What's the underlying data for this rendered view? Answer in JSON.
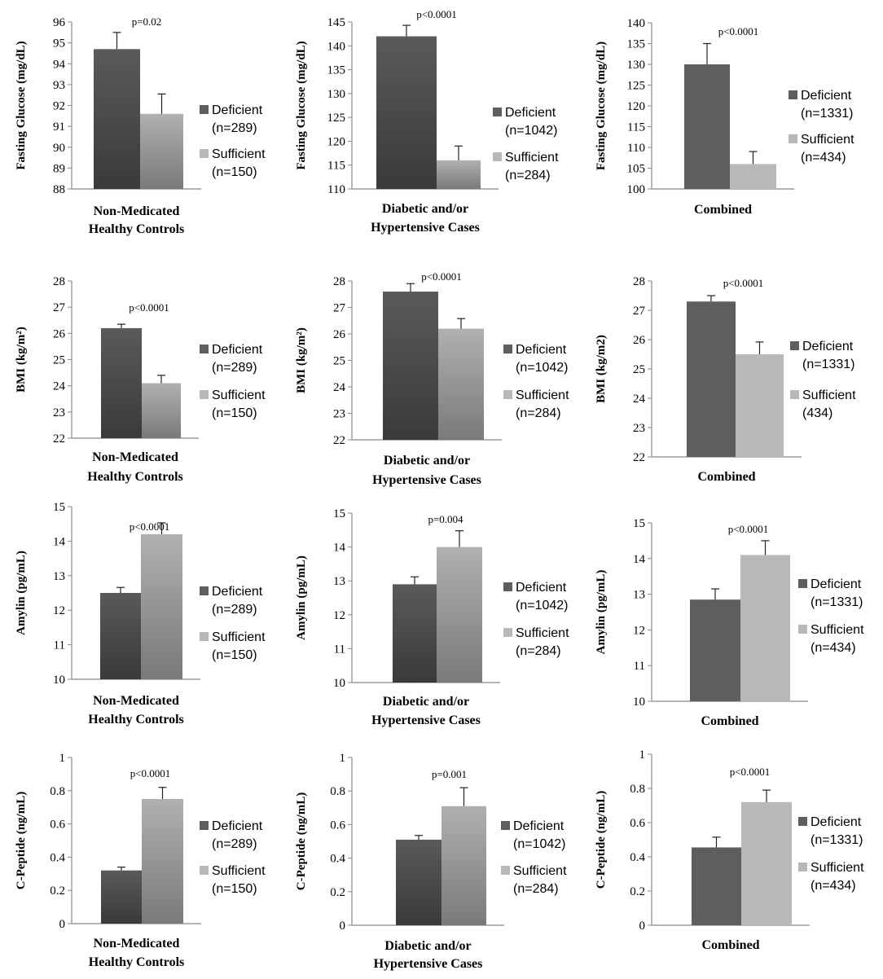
{
  "colors": {
    "deficient_top": "#5a5a5a",
    "deficient_bottom": "#3a3a3a",
    "sufficient_top": "#b0b0b0",
    "sufficient_bottom": "#7a7a7a",
    "deficient_flat": "#5e5e5e",
    "sufficient_flat": "#b8b8b8"
  },
  "chart_data": [
    {
      "type": "bar",
      "ylabel": "Fasting Glucose (mg/dL)",
      "xlabel": [
        "Non-Medicated",
        "Healthy Controls"
      ],
      "ylim": [
        88,
        96
      ],
      "yticks": [
        88,
        89,
        90,
        91,
        92,
        93,
        94,
        95,
        96
      ],
      "p_value": "p=0.02",
      "series": [
        {
          "name": "Deficient",
          "n_label": "(n=289)",
          "value": 94.7,
          "error": 0.8
        },
        {
          "name": "Sufficient",
          "n_label": "(n=150)",
          "value": 91.6,
          "error": 0.95
        }
      ],
      "style": "gradient"
    },
    {
      "type": "bar",
      "ylabel": "Fasting Glucose (mg/dL)",
      "xlabel": [
        "Diabetic and/or",
        "Hypertensive Cases"
      ],
      "ylim": [
        110,
        145
      ],
      "yticks": [
        110,
        115,
        120,
        125,
        130,
        135,
        140,
        145
      ],
      "p_value": "p<0.0001",
      "series": [
        {
          "name": "Deficient",
          "n_label": "(n=1042)",
          "value": 142,
          "error": 2.3
        },
        {
          "name": "Sufficient",
          "n_label": "(n=284)",
          "value": 116,
          "error": 3
        }
      ],
      "style": "gradient"
    },
    {
      "type": "bar",
      "ylabel": "Fasting Glucose (mg/dL)",
      "xlabel": [
        "Combined"
      ],
      "ylim": [
        100,
        140
      ],
      "yticks": [
        100,
        105,
        110,
        115,
        120,
        125,
        130,
        135,
        140
      ],
      "p_value": "p<0.0001",
      "series": [
        {
          "name": "Deficient",
          "n_label": "(n=1331)",
          "value": 130,
          "error": 5
        },
        {
          "name": "Sufficient",
          "n_label": "(n=434)",
          "value": 106,
          "error": 3
        }
      ],
      "style": "flat"
    },
    {
      "type": "bar",
      "ylabel": "BMI (kg/m²)",
      "xlabel": [
        "Non-Medicated",
        "Healthy Controls"
      ],
      "ylim": [
        22,
        28
      ],
      "yticks": [
        22,
        23,
        24,
        25,
        26,
        27,
        28
      ],
      "p_value": "p<0.0001",
      "series": [
        {
          "name": "Deficient",
          "n_label": "(n=289)",
          "value": 26.2,
          "error": 0.15
        },
        {
          "name": "Sufficient",
          "n_label": "(n=150)",
          "value": 24.1,
          "error": 0.3
        }
      ],
      "style": "gradient"
    },
    {
      "type": "bar",
      "ylabel": "BMI (kg/m²)",
      "xlabel": [
        "Diabetic and/or",
        "Hypertensive Cases"
      ],
      "ylim": [
        22,
        28
      ],
      "yticks": [
        22,
        23,
        24,
        25,
        26,
        27,
        28
      ],
      "p_value": "p<0.0001",
      "series": [
        {
          "name": "Deficient",
          "n_label": "(n=1042)",
          "value": 27.6,
          "error": 0.3
        },
        {
          "name": "Sufficient",
          "n_label": "(n=284)",
          "value": 26.2,
          "error": 0.38
        }
      ],
      "style": "gradient"
    },
    {
      "type": "bar",
      "ylabel": "BMI (kg/m2)",
      "xlabel": [
        "Combined"
      ],
      "ylim": [
        22,
        28
      ],
      "yticks": [
        22,
        23,
        24,
        25,
        26,
        27,
        28
      ],
      "p_value": "p<0.0001",
      "series": [
        {
          "name": "Deficient",
          "n_label": "(n=1331)",
          "value": 27.3,
          "error": 0.2
        },
        {
          "name": "Sufficient",
          "n_label": "(434)",
          "value": 25.5,
          "error": 0.42
        }
      ],
      "style": "flat"
    },
    {
      "type": "bar",
      "ylabel": "Amylin (pg/mL)",
      "xlabel": [
        "Non-Medicated",
        "Healthy Controls"
      ],
      "ylim": [
        10,
        15
      ],
      "yticks": [
        10,
        11,
        12,
        13,
        14,
        15
      ],
      "p_value": "p<0.0001",
      "series": [
        {
          "name": "Deficient",
          "n_label": "(n=289)",
          "value": 12.5,
          "error": 0.16
        },
        {
          "name": "Sufficient",
          "n_label": "(n=150)",
          "value": 14.2,
          "error": 0.33
        }
      ],
      "style": "gradient"
    },
    {
      "type": "bar",
      "ylabel": "Amylin (pg/mL)",
      "xlabel": [
        "Diabetic and/or",
        "Hypertensive Cases"
      ],
      "ylim": [
        10,
        15
      ],
      "yticks": [
        10,
        11,
        12,
        13,
        14,
        15
      ],
      "p_value": "p=0.004",
      "series": [
        {
          "name": "Deficient",
          "n_label": "(n=1042)",
          "value": 12.9,
          "error": 0.22
        },
        {
          "name": "Sufficient",
          "n_label": "(n=284)",
          "value": 14.0,
          "error": 0.48
        }
      ],
      "style": "gradient"
    },
    {
      "type": "bar",
      "ylabel": "Amylin (pg/mL)",
      "xlabel": [
        "Combined"
      ],
      "ylim": [
        10,
        15
      ],
      "yticks": [
        10,
        11,
        12,
        13,
        14,
        15
      ],
      "p_value": "p<0.0001",
      "series": [
        {
          "name": "Deficient",
          "n_label": "(n=1331)",
          "value": 12.85,
          "error": 0.3
        },
        {
          "name": "Sufficient",
          "n_label": "(n=434)",
          "value": 14.1,
          "error": 0.4
        }
      ],
      "style": "flat"
    },
    {
      "type": "bar",
      "ylabel": "C-Peptide (ng/mL)",
      "xlabel": [
        "Non-Medicated",
        "Healthy Controls"
      ],
      "ylim": [
        0,
        1
      ],
      "yticks": [
        0,
        0.2,
        0.4,
        0.6,
        0.8,
        1
      ],
      "p_value": "p<0.0001",
      "series": [
        {
          "name": "Deficient",
          "n_label": "(n=289)",
          "value": 0.32,
          "error": 0.02
        },
        {
          "name": "Sufficient",
          "n_label": "(n=150)",
          "value": 0.75,
          "error": 0.07
        }
      ],
      "style": "gradient"
    },
    {
      "type": "bar",
      "ylabel": "C-Peptide (ng/mL)",
      "xlabel": [
        "Diabetic and/or",
        "Hypertensive Cases"
      ],
      "ylim": [
        0,
        1
      ],
      "yticks": [
        0,
        0.2,
        0.4,
        0.6,
        0.8,
        1
      ],
      "p_value": "p=0.001",
      "series": [
        {
          "name": "Deficient",
          "n_label": "(n=1042)",
          "value": 0.51,
          "error": 0.025
        },
        {
          "name": "Sufficient",
          "n_label": "(n=284)",
          "value": 0.71,
          "error": 0.11
        }
      ],
      "style": "gradient"
    },
    {
      "type": "bar",
      "ylabel": "C-Peptide (ng/mL)",
      "xlabel": [
        "Combined"
      ],
      "ylim": [
        0,
        1
      ],
      "yticks": [
        0,
        0.2,
        0.4,
        0.6,
        0.8,
        1
      ],
      "p_value": "p<0.0001",
      "series": [
        {
          "name": "Deficient",
          "n_label": "(n=1331)",
          "value": 0.455,
          "error": 0.06
        },
        {
          "name": "Sufficient",
          "n_label": "(n=434)",
          "value": 0.72,
          "error": 0.07
        }
      ],
      "style": "flat"
    }
  ]
}
